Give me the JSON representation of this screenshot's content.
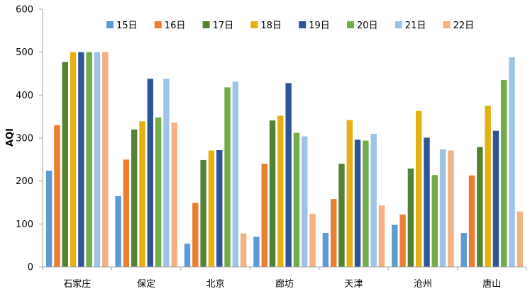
{
  "chart_data": {
    "type": "bar",
    "ylabel": "AQI",
    "ylim": [
      0,
      600
    ],
    "yticks": [
      0,
      100,
      200,
      300,
      400,
      500,
      600
    ],
    "grid": false,
    "legend_position": "top",
    "categories": [
      "石家庄",
      "保定",
      "北京",
      "廊坊",
      "天津",
      "沧州",
      "唐山"
    ],
    "series": [
      {
        "name": "15日",
        "color": "#5B9BD5",
        "values": [
          224,
          165,
          54,
          70,
          79,
          98,
          79
        ]
      },
      {
        "name": "16日",
        "color": "#ED7D31",
        "values": [
          330,
          250,
          149,
          240,
          158,
          122,
          213
        ]
      },
      {
        "name": "17日",
        "color": "#548235",
        "values": [
          477,
          320,
          249,
          341,
          240,
          229,
          279
        ]
      },
      {
        "name": "18日",
        "color": "#E6B011",
        "values": [
          500,
          339,
          271,
          352,
          342,
          363,
          375
        ]
      },
      {
        "name": "19日",
        "color": "#2F5597",
        "values": [
          500,
          438,
          272,
          428,
          296,
          301,
          317
        ]
      },
      {
        "name": "20日",
        "color": "#70AD47",
        "values": [
          500,
          348,
          418,
          312,
          294,
          214,
          435
        ]
      },
      {
        "name": "21日",
        "color": "#9DC3E6",
        "values": [
          500,
          438,
          431,
          304,
          310,
          274,
          488
        ]
      },
      {
        "name": "22日",
        "color": "#F4B183",
        "values": [
          500,
          336,
          78,
          124,
          143,
          271,
          129
        ]
      }
    ]
  }
}
